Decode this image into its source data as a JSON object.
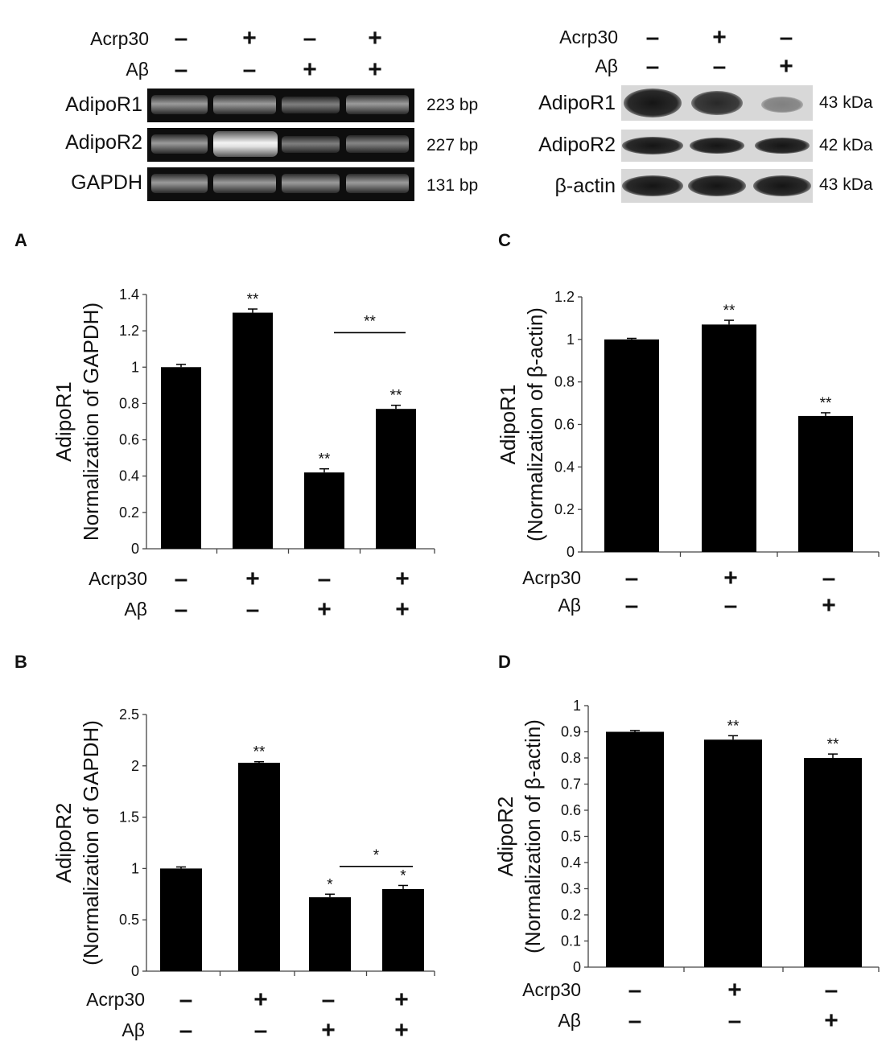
{
  "blot_left": {
    "treatment_rows": [
      {
        "label": "Acrp30",
        "signs": [
          "–",
          "+",
          "–",
          "+"
        ]
      },
      {
        "label": "Aβ",
        "signs": [
          "–",
          "–",
          "+",
          "+"
        ]
      }
    ],
    "bands": [
      {
        "label": "AdipoR1",
        "size": "223 bp"
      },
      {
        "label": "AdipoR2",
        "size": "227 bp"
      },
      {
        "label": "GAPDH",
        "size": "131 bp"
      }
    ]
  },
  "blot_right": {
    "treatment_rows": [
      {
        "label": "Acrp30",
        "signs": [
          "–",
          "+",
          "–"
        ]
      },
      {
        "label": "Aβ",
        "signs": [
          "–",
          "–",
          "+"
        ]
      }
    ],
    "bands": [
      {
        "label": "AdipoR1",
        "size": "43 kDa"
      },
      {
        "label": "AdipoR2",
        "size": "42 kDa"
      },
      {
        "label": "β-actin",
        "size": "43 kDa"
      }
    ]
  },
  "chart_data": [
    {
      "panel": "A",
      "type": "bar",
      "ylabel": [
        "AdipoR1",
        "Normalization of GAPDH)"
      ],
      "ylim": [
        0,
        1.4
      ],
      "yticks": [
        "0",
        "0.2",
        "0.4",
        "0.6",
        "0.8",
        "1",
        "1.2",
        "1.4"
      ],
      "ytick_values": [
        0,
        0.2,
        0.4,
        0.6,
        0.8,
        1,
        1.2,
        1.4
      ],
      "values": [
        1.0,
        1.3,
        0.42,
        0.77
      ],
      "errors": [
        0.015,
        0.02,
        0.02,
        0.02
      ],
      "significance": [
        "",
        "**",
        "**",
        "**"
      ],
      "bracket": {
        "from": 2,
        "to": 3,
        "label": "**",
        "y": 1.19
      },
      "treatments": [
        {
          "label": "Acrp30",
          "signs": [
            "–",
            "+",
            "–",
            "+"
          ]
        },
        {
          "label": "Aβ",
          "signs": [
            "–",
            "–",
            "+",
            "+"
          ]
        }
      ]
    },
    {
      "panel": "B",
      "type": "bar",
      "ylabel": [
        "AdipoR2",
        "(Normalization of GAPDH)"
      ],
      "ylim": [
        0,
        2.5
      ],
      "yticks": [
        "0",
        "0.5",
        "1",
        "1.5",
        "2",
        "2.5"
      ],
      "ytick_values": [
        0,
        0.5,
        1,
        1.5,
        2,
        2.5
      ],
      "values": [
        1.0,
        2.03,
        0.72,
        0.8
      ],
      "errors": [
        0.015,
        0.01,
        0.03,
        0.035
      ],
      "significance": [
        "",
        "**",
        "*",
        "*"
      ],
      "bracket": {
        "from": 2,
        "to": 3,
        "label": "*",
        "y": 1.02
      },
      "treatments": [
        {
          "label": "Acrp30",
          "signs": [
            "–",
            "+",
            "–",
            "+"
          ]
        },
        {
          "label": "Aβ",
          "signs": [
            "–",
            "–",
            "+",
            "+"
          ]
        }
      ]
    },
    {
      "panel": "C",
      "type": "bar",
      "ylabel": [
        "AdipoR1",
        "(Normalization of β-actin)"
      ],
      "ylim": [
        0,
        1.2
      ],
      "yticks": [
        "0",
        "0.2",
        "0.4",
        "0.6",
        "0.8",
        "1",
        "1.2"
      ],
      "ytick_values": [
        0,
        0.2,
        0.4,
        0.6,
        0.8,
        1,
        1.2
      ],
      "values": [
        1.0,
        1.07,
        0.64
      ],
      "errors": [
        0.005,
        0.02,
        0.015
      ],
      "significance": [
        "",
        "**",
        "**"
      ],
      "treatments": [
        {
          "label": "Acrp30",
          "signs": [
            "–",
            "+",
            "–"
          ]
        },
        {
          "label": "Aβ",
          "signs": [
            "–",
            "–",
            "+"
          ]
        }
      ]
    },
    {
      "panel": "D",
      "type": "bar",
      "ylabel": [
        "AdipoR2",
        "(Normalization of β-actin)"
      ],
      "ylim": [
        0,
        1
      ],
      "yticks": [
        "0",
        "0.1",
        "0.2",
        "0.3",
        "0.4",
        "0.5",
        "0.6",
        "0.7",
        "0.8",
        "0.9",
        "1"
      ],
      "ytick_values": [
        0,
        0.1,
        0.2,
        0.3,
        0.4,
        0.5,
        0.6,
        0.7,
        0.8,
        0.9,
        1
      ],
      "values": [
        0.9,
        0.87,
        0.8
      ],
      "errors": [
        0.005,
        0.015,
        0.015
      ],
      "significance": [
        "",
        "**",
        "**"
      ],
      "treatments": [
        {
          "label": "Acrp30",
          "signs": [
            "–",
            "+",
            "–"
          ]
        },
        {
          "label": "Aβ",
          "signs": [
            "–",
            "–",
            "+"
          ]
        }
      ]
    }
  ]
}
